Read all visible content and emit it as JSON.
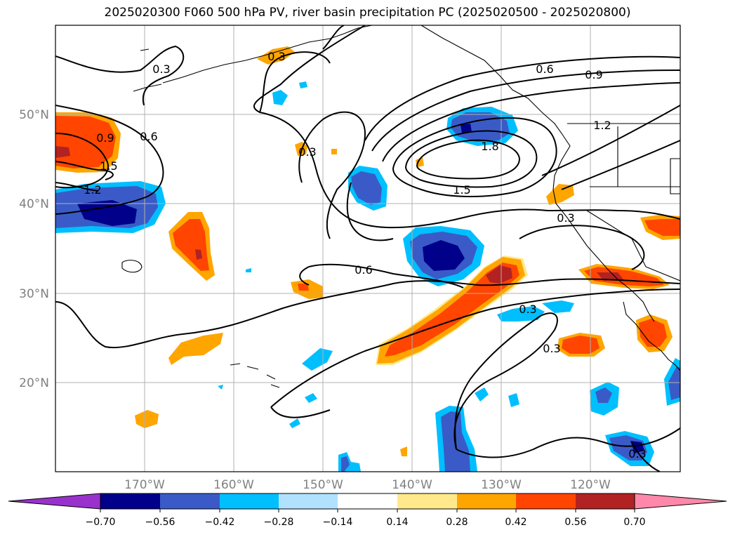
{
  "title": "2025020300 F060 500 hPa PV, river basin precipitation PC (2025020500 - 2025020800)",
  "colors": {
    "neg_070": "#9932CC",
    "neg_056": "#00008B",
    "neg_042": "#3A5BC7",
    "neg_028": "#00BFFF",
    "neg_014": "#B0E2FF",
    "neutral": "#FFFFFF",
    "pos_014": "#FFE98C",
    "pos_028": "#FFA500",
    "pos_042": "#FF4500",
    "pos_056": "#B22222",
    "pos_070": "#FF88AA",
    "contour": "#000000",
    "grid": "#B0B0B0",
    "coast": "#000000"
  },
  "map": {
    "lon_range": [
      -180,
      -110
    ],
    "lat_range": [
      10,
      60
    ],
    "lon_ticks": [
      "170°W",
      "160°W",
      "150°W",
      "140°W",
      "130°W",
      "120°W"
    ],
    "lat_ticks": [
      "50°N",
      "40°N",
      "30°N",
      "20°N"
    ],
    "grid": true
  },
  "contour_labels": [
    "0.3",
    "0.6",
    "0.9",
    "1.2",
    "1.5",
    "1.8"
  ],
  "colorbar": {
    "ticks": [
      "−0.70",
      "−0.56",
      "−0.42",
      "−0.28",
      "−0.14",
      "0.14",
      "0.28",
      "0.42",
      "0.56",
      "0.70"
    ],
    "extend": "both"
  }
}
